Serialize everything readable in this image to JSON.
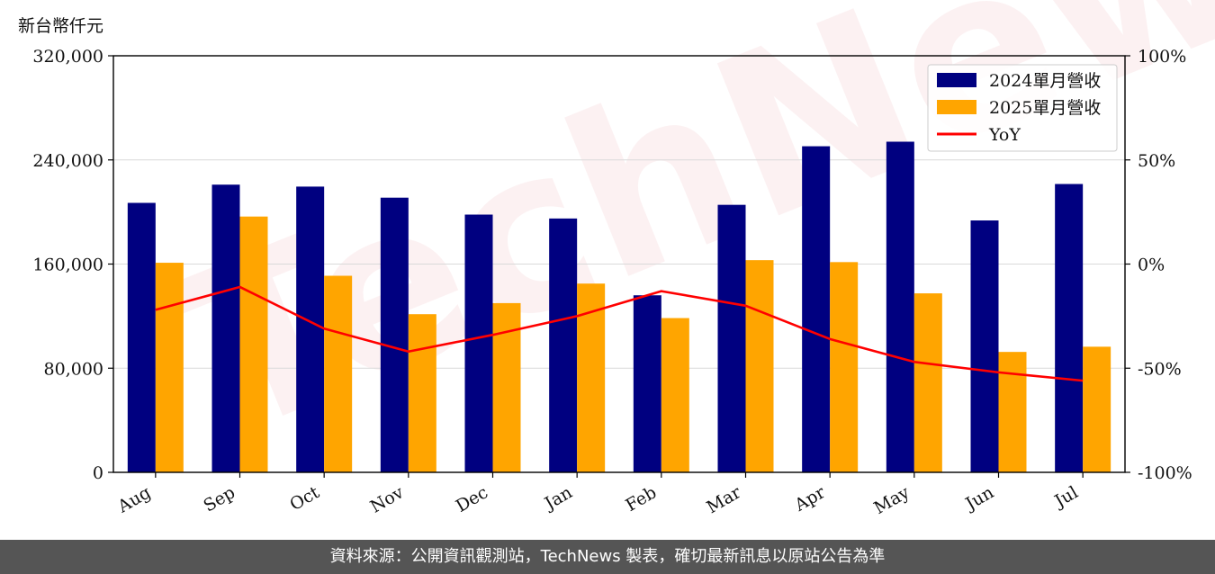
{
  "unit_label": "新台幣仟元",
  "watermark": "TechNews",
  "footer": "資料來源：公開資訊觀測站，TechNews 製表，確切最新訊息以原站公告為準",
  "colors": {
    "series2024": "#000080",
    "series2025": "#ffa500",
    "yoy": "#ff0000"
  },
  "chart_data": {
    "type": "bar",
    "categories": [
      "Aug",
      "Sep",
      "Oct",
      "Nov",
      "Dec",
      "Jan",
      "Feb",
      "Mar",
      "Apr",
      "May",
      "Jun",
      "Jul"
    ],
    "series": [
      {
        "name": "2024單月營收",
        "type": "bar",
        "axis": "left",
        "values": [
          207000,
          221000,
          219500,
          211000,
          198000,
          195000,
          136000,
          205500,
          250500,
          254000,
          193500,
          221500
        ]
      },
      {
        "name": "2025單月營收",
        "type": "bar",
        "axis": "left",
        "values": [
          161000,
          196500,
          151000,
          121500,
          130000,
          145000,
          118500,
          163000,
          161500,
          137500,
          92500,
          96500
        ]
      },
      {
        "name": "YoY",
        "type": "line",
        "axis": "right",
        "values": [
          -22,
          -11,
          -31,
          -42,
          -34,
          -25,
          -13,
          -20,
          -36,
          -47,
          -52,
          -56
        ]
      }
    ],
    "left_axis": {
      "ylim": [
        0,
        320000
      ],
      "ticks": [
        "0",
        "80,000",
        "160,000",
        "240,000",
        "320,000"
      ]
    },
    "right_axis": {
      "ylim": [
        -100,
        100
      ],
      "ticks": [
        "-100%",
        "-50%",
        "0%",
        "50%",
        "100%"
      ]
    },
    "grid": "horizontal",
    "legend": "top-right"
  }
}
